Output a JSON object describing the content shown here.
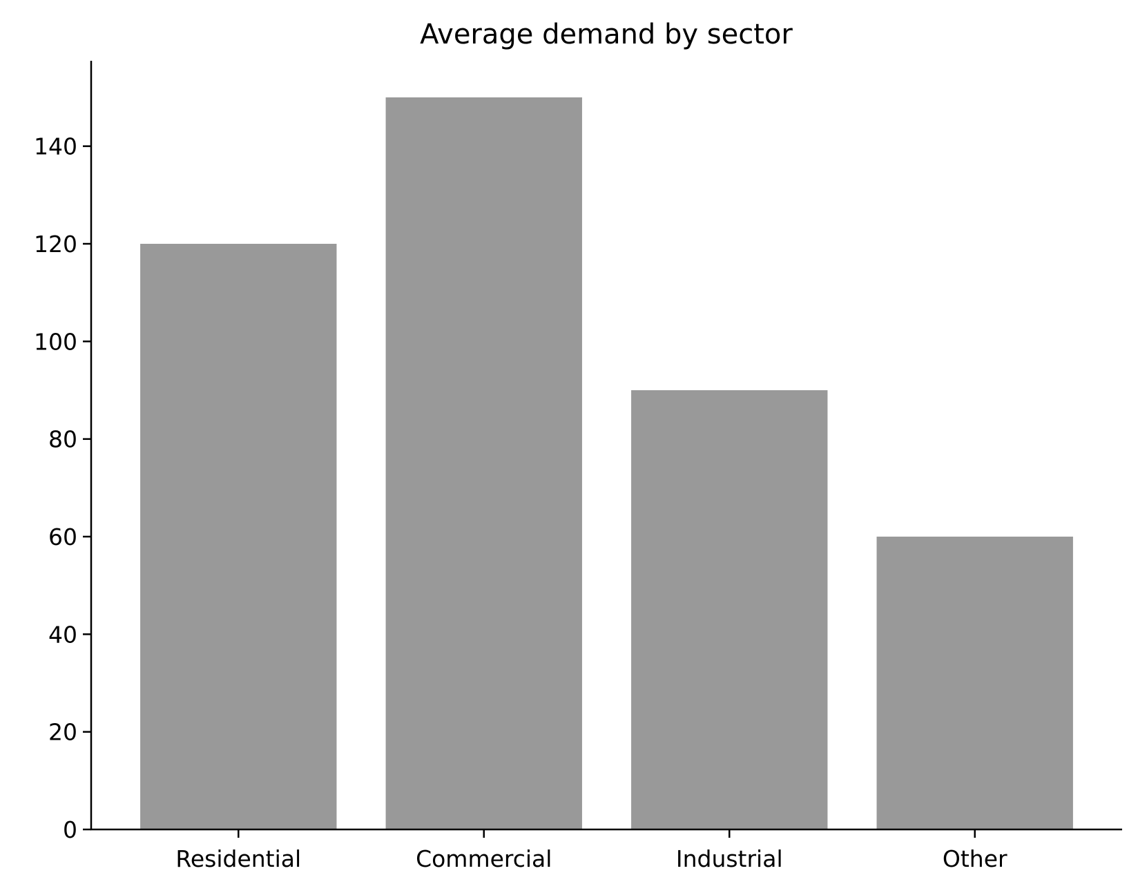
{
  "chart_data": {
    "type": "bar",
    "title": "Average demand by sector",
    "xlabel": "",
    "ylabel": "",
    "categories": [
      "Residential",
      "Commercial",
      "Industrial",
      "Other"
    ],
    "values": [
      120,
      150,
      90,
      60
    ],
    "yticks": [
      0,
      20,
      40,
      60,
      80,
      100,
      120,
      140
    ],
    "ylim": [
      0,
      157.5
    ],
    "grid": false,
    "legend": "none",
    "bar_color": "#999999"
  }
}
